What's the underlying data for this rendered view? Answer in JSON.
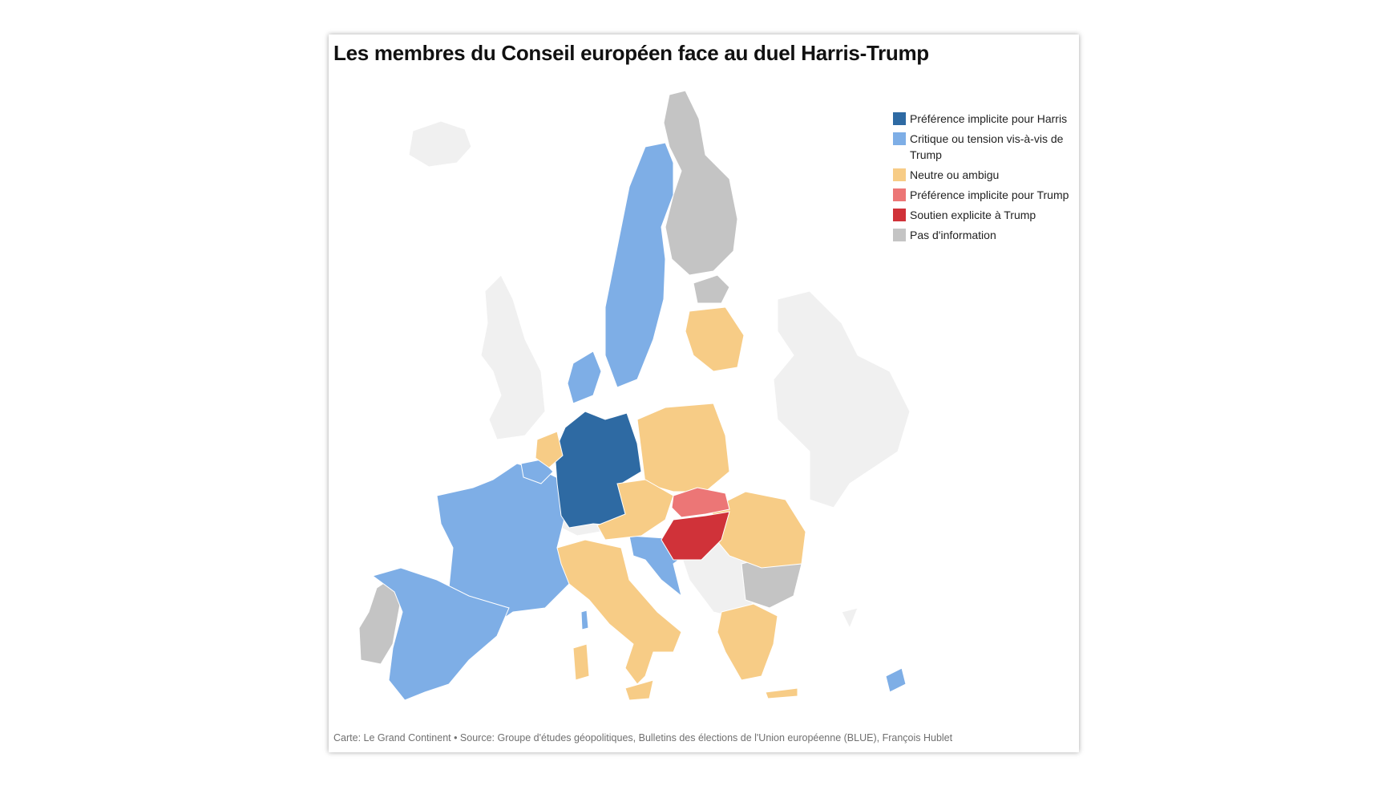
{
  "title": "Les membres du Conseil européen face au duel Harris-Trump",
  "legend": [
    {
      "label": "Préférence implicite pour Harris",
      "color": "#2e6aa3"
    },
    {
      "label": "Critique ou tension vis-à-vis de Trump",
      "color": "#7eaee6"
    },
    {
      "label": "Neutre ou ambigu",
      "color": "#f7cc86"
    },
    {
      "label": "Préférence implicite pour Trump",
      "color": "#ec7676"
    },
    {
      "label": "Soutien explicite à Trump",
      "color": "#d03239"
    },
    {
      "label": "Pas d'information",
      "color": "#c4c4c4"
    }
  ],
  "footer": "Carte: Le Grand Continent • Source: Groupe d'études géopolitiques, Bulletins des élections de l'Union européenne (BLUE), François Hublet",
  "colors": {
    "harris": "#2e6aa3",
    "critical": "#7eaee6",
    "neutral": "#f7cc86",
    "trump_implicit": "#ec7676",
    "trump_explicit": "#d03239",
    "no_info": "#c4c4c4",
    "non_member": "#f0f0f0"
  }
}
